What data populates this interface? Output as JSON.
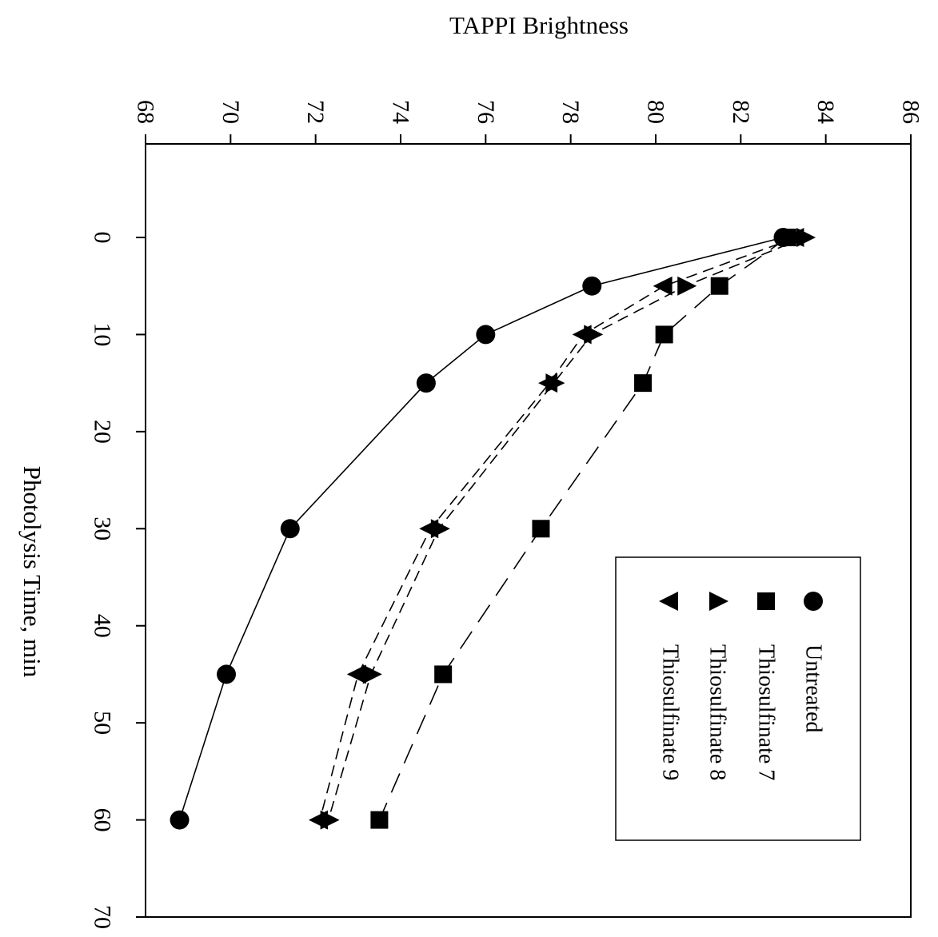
{
  "chart_data": {
    "type": "line",
    "orientation": "rotated-90-clockwise",
    "title": "",
    "xlabel": "Photolysis Time, min",
    "ylabel": "TAPPI Brightness",
    "xlim": [
      0,
      70
    ],
    "ylim": [
      68,
      86
    ],
    "x_ticks": [
      "0",
      "10",
      "20",
      "30",
      "40",
      "50",
      "60",
      "70"
    ],
    "y_ticks": [
      "68",
      "70",
      "72",
      "74",
      "76",
      "78",
      "80",
      "82",
      "84",
      "86"
    ],
    "grid": false,
    "legend": {
      "placement": "bottom-right",
      "items": [
        {
          "marker": "circle",
          "label": "Untreated"
        },
        {
          "marker": "square",
          "label": "Thiosulfinate 7"
        },
        {
          "marker": "triangle-right",
          "label": "Thiosulfinate 8"
        },
        {
          "marker": "triangle-left",
          "label": "Thiosulfinate 9"
        }
      ]
    },
    "series": [
      {
        "name": "Untreated",
        "marker": "circle",
        "line": "solid",
        "x": [
          0,
          5,
          10,
          15,
          30,
          45,
          60
        ],
        "y": [
          83.0,
          78.5,
          76.0,
          74.6,
          71.4,
          69.9,
          68.8
        ]
      },
      {
        "name": "Thiosulfinate 7",
        "marker": "square",
        "line": "long-dash",
        "x": [
          0,
          5,
          10,
          15,
          30,
          45,
          60
        ],
        "y": [
          83.1,
          81.5,
          80.2,
          79.7,
          77.3,
          75.0,
          73.5
        ]
      },
      {
        "name": "Thiosulfinate 8",
        "marker": "triangle-right",
        "line": "short-dash",
        "x": [
          0,
          5,
          10,
          15,
          30,
          45,
          60
        ],
        "y": [
          83.5,
          80.7,
          78.5,
          77.6,
          74.9,
          73.3,
          72.3
        ]
      },
      {
        "name": "Thiosulfinate 9",
        "marker": "triangle-left",
        "line": "short-dash",
        "x": [
          0,
          5,
          10,
          15,
          30,
          45,
          60
        ],
        "y": [
          83.3,
          80.2,
          78.3,
          77.5,
          74.7,
          73.0,
          72.1
        ]
      }
    ],
    "colors": {
      "foreground": "#000000",
      "background": "#ffffff"
    }
  }
}
